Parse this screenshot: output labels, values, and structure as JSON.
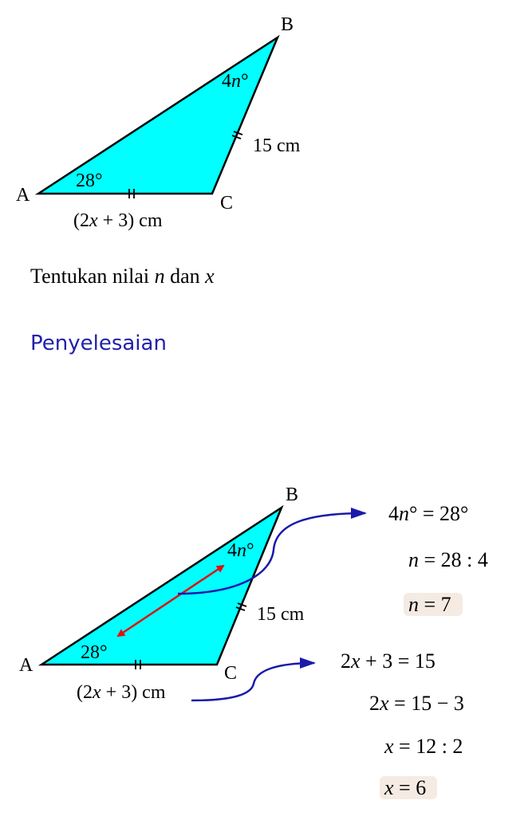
{
  "colors": {
    "triangle_fill": "#00ffff",
    "triangle_stroke": "#000000",
    "heading": "#2222aa",
    "arrow_blue": "#1a1aaa",
    "arrow_red": "#e01010",
    "highlight": "#f5ebe3"
  },
  "figure1": {
    "vertex_a": "A",
    "vertex_b": "B",
    "vertex_c": "C",
    "angle_a": "28°",
    "angle_b_coef": "4",
    "angle_b_var": "n",
    "angle_b_unit": "°",
    "side_bc": "15 cm",
    "side_ac_open": "(2",
    "side_ac_var": "x",
    "side_ac_close": " + 3) cm"
  },
  "question": {
    "prefix": "Tentukan nilai ",
    "var1": "n",
    "middle": " dan ",
    "var2": "x"
  },
  "heading": "Penyelesaian",
  "figure2": {
    "vertex_a": "A",
    "vertex_b": "B",
    "vertex_c": "C",
    "angle_a": "28°",
    "angle_b_coef": "4",
    "angle_b_var": "n",
    "angle_b_unit": "°",
    "side_bc": "15 cm",
    "side_ac_open": "(2",
    "side_ac_var": "x",
    "side_ac_close": " + 3) cm"
  },
  "solution_n": {
    "line1_coef": "4",
    "line1_var": "n",
    "line1_rest": "°  =  28°",
    "line2_var": "n",
    "line2_rest": "  =  28 : 4",
    "line3_var": "n",
    "line3_rest": "  =  7"
  },
  "solution_x": {
    "line1_coef": "2",
    "line1_var": "x",
    "line1_rest": " + 3  =  15",
    "line2_coef": "2",
    "line2_var": "x",
    "line2_rest": "  =  15 − 3",
    "line3_var": "x",
    "line3_rest": "  =  12 : 2",
    "line4_var": "x",
    "line4_rest": "  =  6"
  }
}
